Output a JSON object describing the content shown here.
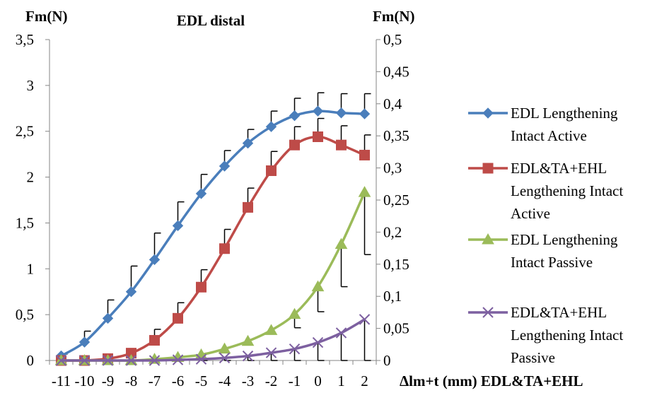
{
  "chart_data": {
    "type": "line",
    "title": "EDL distal",
    "ylabel_left": "Fm(N)",
    "ylabel_right": "Fm(N)",
    "xlabel": "Δlm+t (mm) EDL&TA+EHL",
    "x": [
      -11,
      -10,
      -9,
      -8,
      -7,
      -6,
      -5,
      -4,
      -3,
      -2,
      -1,
      0,
      1,
      2
    ],
    "x_tick_labels": [
      "-11",
      "-10",
      "-9",
      "-8",
      "-7",
      "-6",
      "-5",
      "-4",
      "-3",
      "-2",
      "-1",
      "0",
      "1",
      "2"
    ],
    "ylim_left": [
      0,
      3.5
    ],
    "ylim_right": [
      0,
      0.5
    ],
    "y_left_tick_labels": [
      "0",
      "0,5",
      "1",
      "1,5",
      "2",
      "2,5",
      "3",
      "3,5"
    ],
    "y_right_tick_labels": [
      "0",
      "0,05",
      "0,1",
      "0,15",
      "0,2",
      "0,25",
      "0,3",
      "0,35",
      "0,4",
      "0,45",
      "0,5"
    ],
    "grid": false,
    "legend_position": "right",
    "series": [
      {
        "name_lines": [
          "EDL Lengthening",
          "Intact Active"
        ],
        "axis": "left",
        "color": "#4A7EBB",
        "marker": "diamond",
        "values": [
          0.05,
          0.2,
          0.46,
          0.75,
          1.1,
          1.47,
          1.82,
          2.12,
          2.37,
          2.55,
          2.67,
          2.72,
          2.7,
          2.69
        ],
        "error_plus": [
          0.02,
          0.12,
          0.2,
          0.28,
          0.29,
          0.26,
          0.21,
          0.17,
          0.15,
          0.17,
          0.19,
          0.2,
          0.21,
          0.22
        ]
      },
      {
        "name_lines": [
          "EDL&TA+EHL",
          "Lengthening Intact",
          "Active"
        ],
        "axis": "left",
        "color": "#BE4B48",
        "marker": "square",
        "values": [
          0.0,
          0.0,
          0.02,
          0.08,
          0.22,
          0.46,
          0.8,
          1.22,
          1.67,
          2.07,
          2.35,
          2.44,
          2.35,
          2.24
        ],
        "error_plus": [
          0.0,
          0.0,
          0.01,
          0.03,
          0.12,
          0.17,
          0.19,
          0.21,
          0.21,
          0.21,
          0.2,
          0.2,
          0.21,
          0.22
        ]
      },
      {
        "name_lines": [
          "EDL Lengthening",
          "Intact Passive"
        ],
        "axis": "right",
        "color": "#9BBB59",
        "marker": "triangle",
        "values": [
          0.0,
          0.0,
          0.0,
          0.0,
          0.002,
          0.005,
          0.009,
          0.018,
          0.03,
          0.047,
          0.072,
          0.115,
          0.181,
          0.262
        ],
        "error_minus": [
          0.0,
          0.0,
          0.0,
          0.0,
          0.0,
          0.0,
          0.0,
          0.0,
          0.0,
          0.0,
          0.021,
          0.039,
          0.066,
          0.097
        ]
      },
      {
        "name_lines": [
          "EDL&TA+EHL",
          "Lengthening Intact",
          "Passive"
        ],
        "axis": "right",
        "color": "#7D60A0",
        "marker": "x",
        "values": [
          0.0,
          0.0,
          0.0,
          0.0,
          0.0,
          0.001,
          0.002,
          0.004,
          0.007,
          0.012,
          0.018,
          0.028,
          0.043,
          0.064
        ],
        "error_minus": [
          0.0,
          0.0,
          0.0,
          0.0,
          0.0,
          0.001,
          0.002,
          0.004,
          0.007,
          0.012,
          0.018,
          0.028,
          0.043,
          0.064
        ]
      }
    ]
  }
}
